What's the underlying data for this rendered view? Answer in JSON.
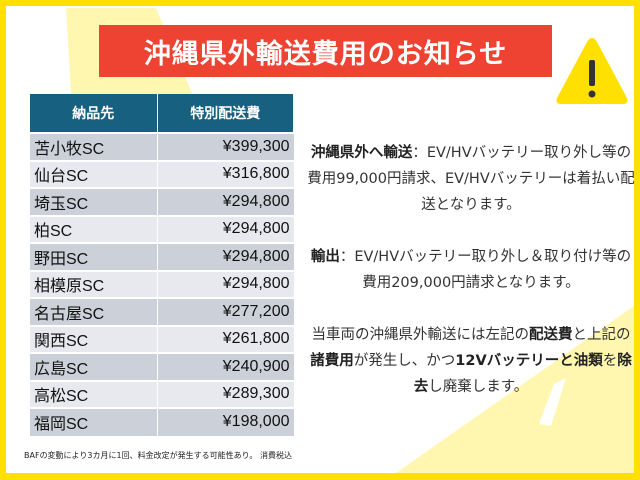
{
  "title": "沖縄県外輸送費用のお知らせ",
  "colors": {
    "border": "#ffe000",
    "title_bg": "#ee4233",
    "header_bg": "#17607f",
    "row_a": "#ccd1d9",
    "row_b": "#e7e9ee",
    "deco": "#fff6b0"
  },
  "icons": {
    "warning": "warning-triangle-icon"
  },
  "table": {
    "headers": [
      "納品先",
      "特別配送費"
    ],
    "rows": [
      [
        "苫小牧SC",
        "¥399,300"
      ],
      [
        "仙台SC",
        "¥316,800"
      ],
      [
        "埼玉SC",
        "¥294,800"
      ],
      [
        "柏SC",
        "¥294,800"
      ],
      [
        "野田SC",
        "¥294,800"
      ],
      [
        "相模原SC",
        "¥294,800"
      ],
      [
        "名古屋SC",
        "¥277,200"
      ],
      [
        "関西SC",
        "¥261,800"
      ],
      [
        "広島SC",
        "¥240,900"
      ],
      [
        "高松SC",
        "¥289,300"
      ],
      [
        "福岡SC",
        "¥198,000"
      ]
    ]
  },
  "notes": [
    [
      {
        "t": "沖縄県外へ輸送",
        "b": true
      },
      {
        "t": "：EV/HVバッテリー取り外し等の費用99,000円請求、EV/HVバッテリーは着払い配送となります。",
        "b": false
      }
    ],
    [
      {
        "t": "輸出",
        "b": true
      },
      {
        "t": "：EV/HVバッテリー取り外し＆取り付け等の費用209,000円請求となります。",
        "b": false
      }
    ],
    [
      {
        "t": "当車両の沖縄県外輸送には左記の",
        "b": false
      },
      {
        "t": "配送費",
        "b": true
      },
      {
        "t": "と上記の",
        "b": false
      },
      {
        "t": "諸費用",
        "b": true
      },
      {
        "t": "が発生し、かつ",
        "b": false
      },
      {
        "t": "12Vバッテリーと油類",
        "b": true
      },
      {
        "t": "を",
        "b": false
      },
      {
        "t": "除去",
        "b": true
      },
      {
        "t": "し廃棄します。",
        "b": false
      }
    ]
  ],
  "footnote": "BAFの変動により3カ月に1回、料金改定が発生する可能性あり。 消費税込"
}
